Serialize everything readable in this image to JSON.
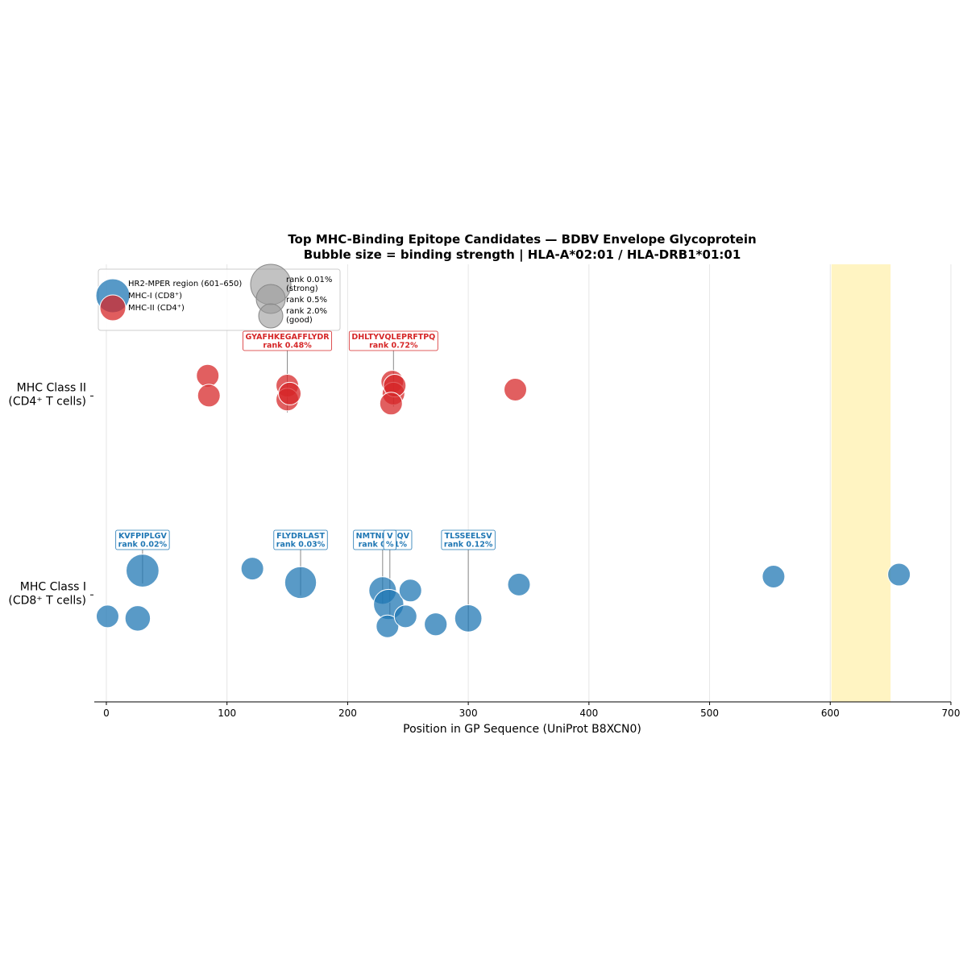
{
  "chart_data": {
    "type": "scatter",
    "title_line1": "Top MHC-Binding Epitope Candidates — BDBV Envelope Glycoprotein",
    "title_line2": "Bubble size = binding strength | HLA-A*02:01 / HLA-DRB1*01:01",
    "xlabel": "Position in GP Sequence (UniProt B8XCN0)",
    "xlim": [
      -10,
      700
    ],
    "xticks": [
      0,
      100,
      200,
      300,
      400,
      500,
      600,
      700
    ],
    "ylim": [
      -0.55,
      1.65
    ],
    "grid": "vertical",
    "legend_position": "top-left",
    "region": {
      "label": "HR2-MPER region (601–650)",
      "start": 601,
      "end": 650,
      "color": "#fff3bf"
    },
    "categories": [
      {
        "line1": "MHC Class II",
        "line2": "(CD4⁺ T cells)",
        "y": 1
      },
      {
        "line1": "MHC Class I",
        "line2": "(CD8⁺ T cells)",
        "y": 0
      }
    ],
    "series": [
      {
        "name": "MHC-I (CD8⁺)",
        "color": "#1f77b4",
        "points": [
          {
            "x": 1,
            "y": -0.12,
            "rank": 0.5
          },
          {
            "x": 26,
            "y": -0.13,
            "rank": 0.2
          },
          {
            "x": 30,
            "y": 0.11,
            "rank": 0.02
          },
          {
            "x": 121,
            "y": 0.12,
            "rank": 0.5
          },
          {
            "x": 161,
            "y": 0.05,
            "rank": 0.03
          },
          {
            "x": 229,
            "y": 0.01,
            "rank": 0.11
          },
          {
            "x": 234,
            "y": -0.06,
            "rank": 0.05
          },
          {
            "x": 233,
            "y": -0.17,
            "rank": 0.6
          },
          {
            "x": 248,
            "y": -0.12,
            "rank": 0.7
          },
          {
            "x": 252,
            "y": 0.01,
            "rank": 0.5
          },
          {
            "x": 273,
            "y": -0.16,
            "rank": 0.4
          },
          {
            "x": 300,
            "y": -0.13,
            "rank": 0.12
          },
          {
            "x": 342,
            "y": 0.04,
            "rank": 0.5
          },
          {
            "x": 553,
            "y": 0.08,
            "rank": 0.6
          },
          {
            "x": 657,
            "y": 0.09,
            "rank": 0.5
          }
        ]
      },
      {
        "name": "MHC-II (CD4⁺)",
        "color": "#d62728",
        "points": [
          {
            "x": 84,
            "y": 1.09,
            "rank": 1.5
          },
          {
            "x": 85,
            "y": 0.99,
            "rank": 1.2
          },
          {
            "x": 150,
            "y": 1.04,
            "rank": 1.0
          },
          {
            "x": 150,
            "y": 0.97,
            "rank": 0.48
          },
          {
            "x": 152,
            "y": 1.0,
            "rank": 1.5
          },
          {
            "x": 237,
            "y": 1.06,
            "rank": 1.0
          },
          {
            "x": 238,
            "y": 1.0,
            "rank": 0.72
          },
          {
            "x": 239,
            "y": 1.04,
            "rank": 1.8
          },
          {
            "x": 236,
            "y": 0.95,
            "rank": 1.5
          },
          {
            "x": 339,
            "y": 1.02,
            "rank": 1.8
          }
        ]
      }
    ],
    "annotations": [
      {
        "peptide": "KVFPIPLGV",
        "rank_text": "rank 0.02%",
        "x": 30,
        "y": 0.11,
        "series": "MHC-I (CD8⁺)"
      },
      {
        "peptide": "FLYDRLAST",
        "rank_text": "rank 0.03%",
        "x": 161,
        "y": 0.05,
        "series": "MHC-I (CD8⁺)"
      },
      {
        "peptide": "NMTNFLFQV",
        "rank_text": "rank 0.11%",
        "x": 229,
        "y": 0.01,
        "series": "MHC-I (CD8⁺)"
      },
      {
        "peptide": "V",
        "rank_text": "%",
        "x": 235,
        "y": -0.06,
        "series": "MHC-I (CD8⁺)"
      },
      {
        "peptide": "TLSSEELSV",
        "rank_text": "rank 0.12%",
        "x": 300,
        "y": -0.13,
        "series": "MHC-I (CD8⁺)"
      },
      {
        "peptide": "GYAFHKEGAFFLYDR",
        "rank_text": "rank 0.48%",
        "x": 150,
        "y": 0.97,
        "series": "MHC-II (CD4⁺)"
      },
      {
        "peptide": "DHLTYVQLEPRFTPQ",
        "rank_text": "rank 0.72%",
        "x": 238,
        "y": 1.0,
        "series": "MHC-II (CD4⁺)"
      }
    ],
    "legend": {
      "entries": [
        {
          "label": "HR2-MPER region (601–650)",
          "kind": "region"
        },
        {
          "label": "MHC-I (CD8⁺)",
          "kind": "series"
        },
        {
          "label": "MHC-II (CD4⁺)",
          "kind": "series"
        }
      ],
      "size_entries": [
        {
          "line1": "rank 0.01%",
          "line2": "(strong)",
          "rank": 0.01
        },
        {
          "line1": "rank 0.5%",
          "line2": "",
          "rank": 0.5
        },
        {
          "line1": "rank 2.0%",
          "line2": "(good)",
          "rank": 2.0
        }
      ]
    }
  }
}
